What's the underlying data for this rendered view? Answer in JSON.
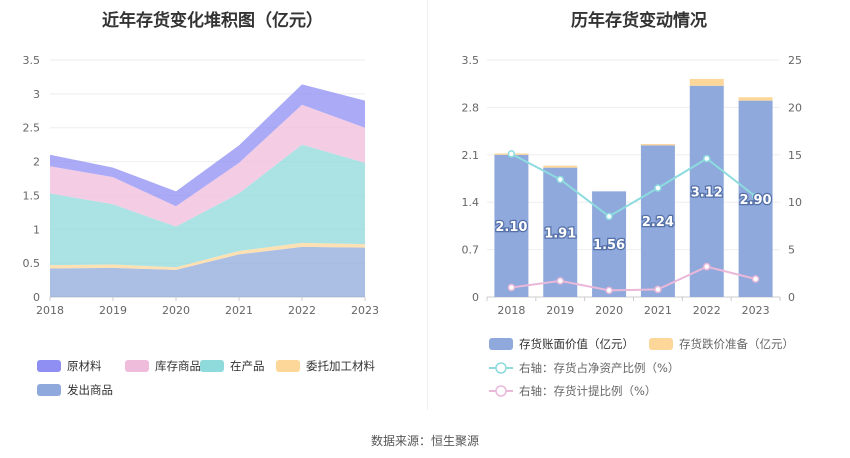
{
  "left_chart": {
    "title": "近年存货变化堆积图（亿元）",
    "legend_labels": [
      "原材料",
      "库存商品",
      "在产品",
      "委托加工材料",
      "发出商品"
    ],
    "y_ticks": [
      "0",
      "0.5",
      "1",
      "1.5",
      "2",
      "2.5",
      "3",
      "3.5"
    ]
  },
  "right_chart": {
    "title": "历年存货变动情况",
    "left_y_ticks": [
      "0",
      "0.7",
      "1.4",
      "2.1",
      "2.8",
      "3.5"
    ],
    "right_y_ticks": [
      "0",
      "5",
      "10",
      "15",
      "20",
      "25"
    ],
    "bar_labels": [
      "2.10",
      "1.91",
      "1.56",
      "2.24",
      "3.12",
      "2.90"
    ],
    "legend_labels": [
      "存货账面价值（亿元）",
      "存货跌价准备（亿元）",
      "右轴：存货占净资产比例（%）",
      "右轴：存货计提比例（%）"
    ]
  },
  "source": "数据来源：恒生聚源",
  "chart_data": [
    {
      "type": "area",
      "title": "近年存货变化堆积图（亿元）",
      "x": [
        "2018",
        "2019",
        "2020",
        "2021",
        "2022",
        "2023"
      ],
      "ylim": [
        0,
        3.5
      ],
      "grid": true,
      "legend_position": "bottom",
      "series": [
        {
          "name": "发出商品",
          "values": [
            0.42,
            0.43,
            0.4,
            0.63,
            0.74,
            0.73
          ],
          "color": "#8fa9dc"
        },
        {
          "name": "委托加工材料",
          "values": [
            0.05,
            0.05,
            0.04,
            0.05,
            0.06,
            0.05
          ],
          "color": "#fdd79a"
        },
        {
          "name": "在产品",
          "values": [
            1.06,
            0.89,
            0.6,
            0.85,
            1.45,
            1.2
          ],
          "color": "#8fdadb"
        },
        {
          "name": "库存商品",
          "values": [
            0.4,
            0.4,
            0.3,
            0.45,
            0.59,
            0.52
          ],
          "color": "#f0bcdc"
        },
        {
          "name": "原材料",
          "values": [
            0.17,
            0.14,
            0.22,
            0.26,
            0.3,
            0.4
          ],
          "color": "#8e8ef3"
        }
      ]
    },
    {
      "type": "bar",
      "title": "历年存货变动情况",
      "categories": [
        "2018",
        "2019",
        "2020",
        "2021",
        "2022",
        "2023"
      ],
      "ylim": [
        0,
        3.5
      ],
      "y2lim": [
        0,
        25
      ],
      "grid": true,
      "legend_position": "bottom",
      "series": [
        {
          "name": "存货账面价值（亿元）",
          "values": [
            2.1,
            1.91,
            1.56,
            2.24,
            3.12,
            2.9
          ],
          "color": "#8fa9dc",
          "axis": "left"
        },
        {
          "name": "存货跌价准备（亿元）",
          "values": [
            0.02,
            0.03,
            0.0,
            0.02,
            0.1,
            0.05
          ],
          "color": "#fdd79a",
          "axis": "left"
        },
        {
          "name": "右轴：存货占净资产比例（%）",
          "values": [
            15.1,
            12.4,
            8.5,
            11.5,
            14.6,
            10.6
          ],
          "color": "#8ddbde",
          "axis": "right",
          "type": "line"
        },
        {
          "name": "右轴：存货计提比例（%）",
          "values": [
            1.0,
            1.7,
            0.7,
            0.8,
            3.2,
            1.9
          ],
          "color": "#eab8d9",
          "axis": "right",
          "type": "line"
        }
      ]
    }
  ]
}
